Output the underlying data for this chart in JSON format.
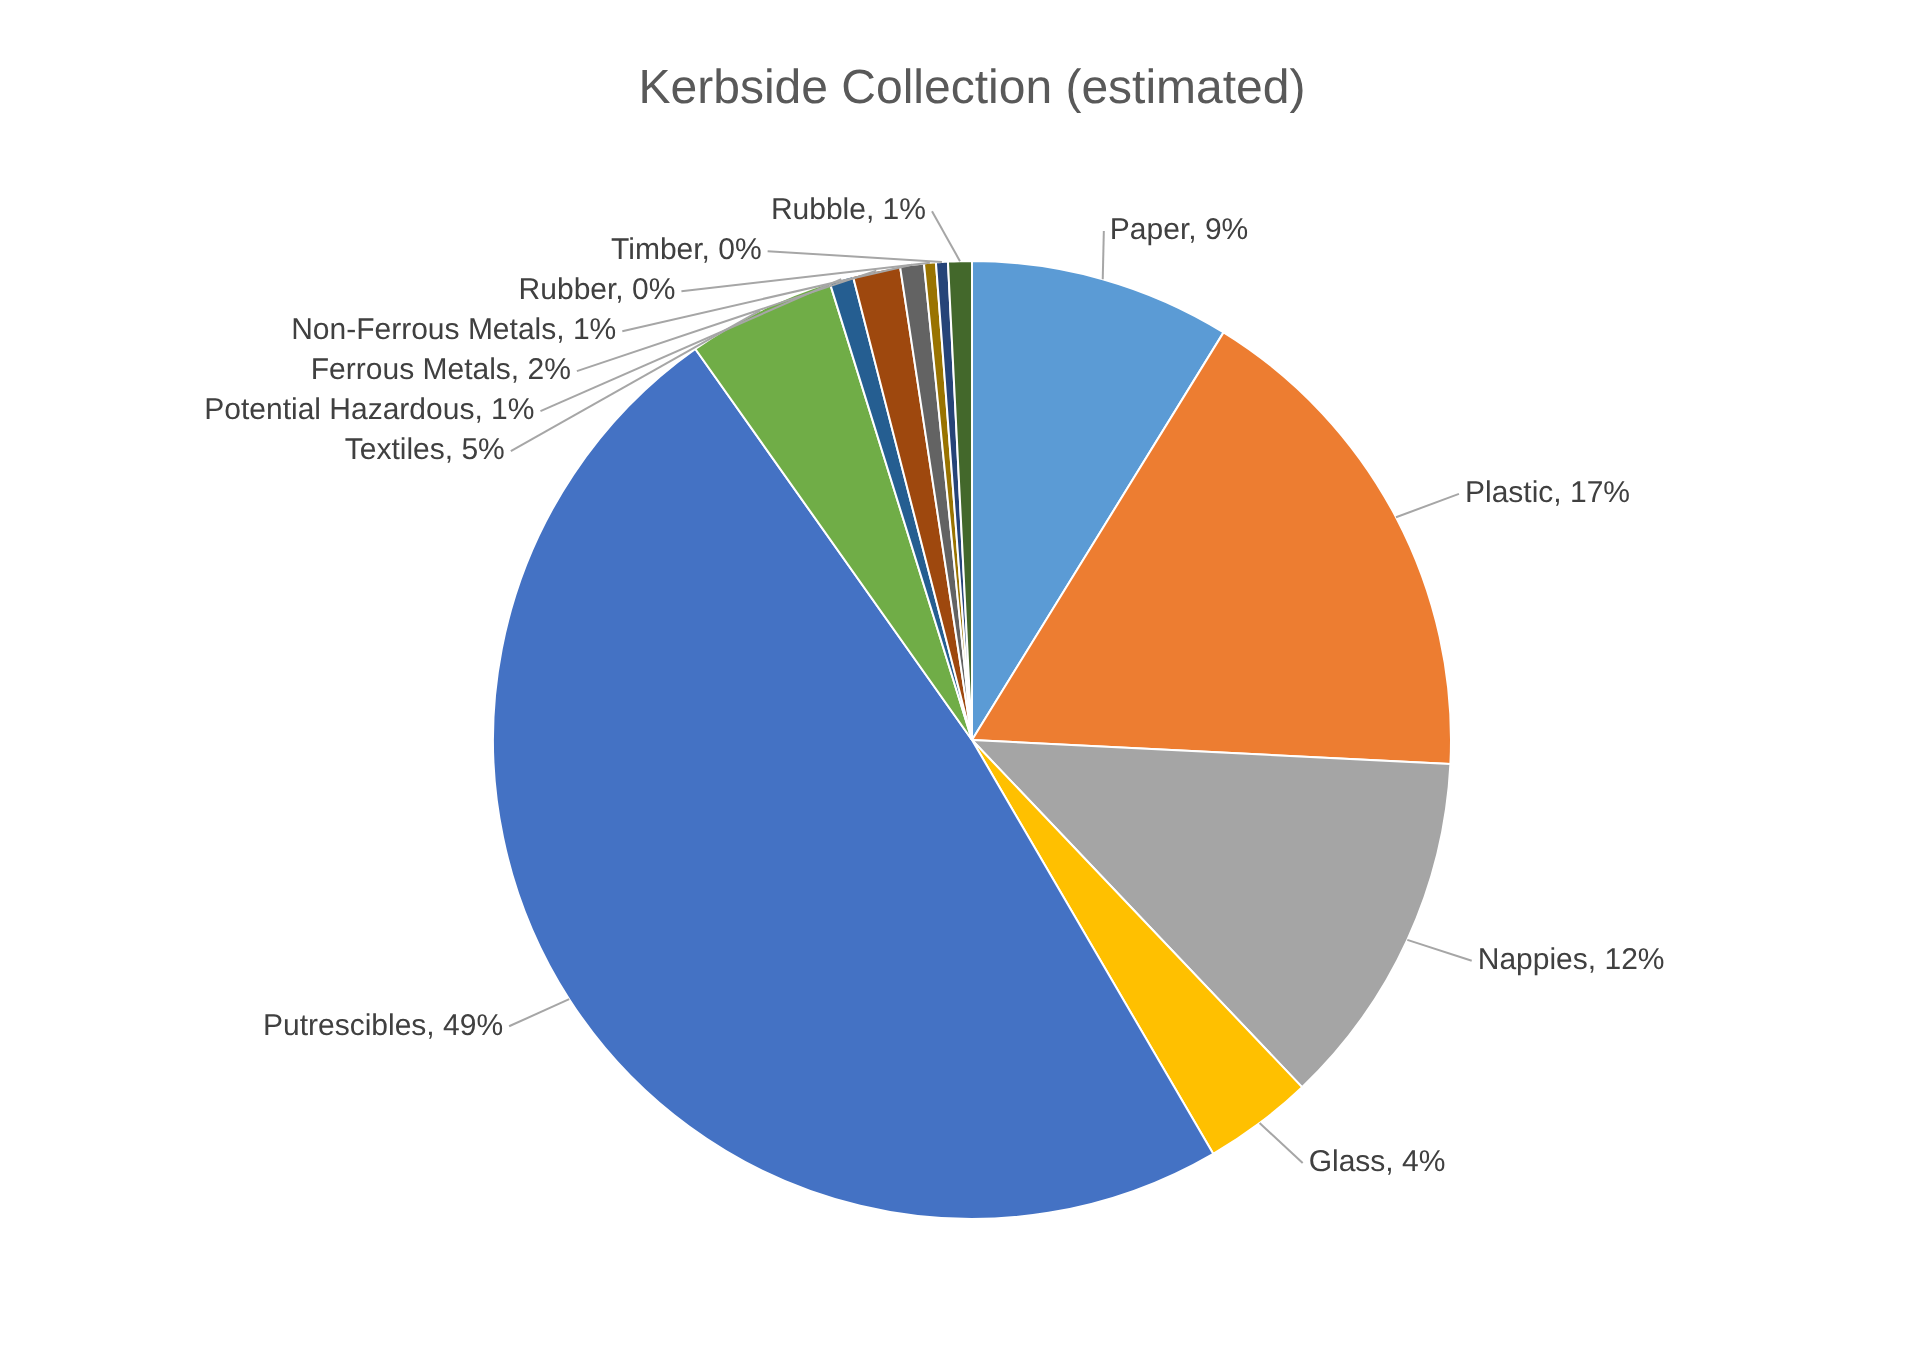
{
  "chart_data": {
    "type": "pie",
    "title": "Kerbside Collection (estimated)",
    "categories": [
      "Paper",
      "Plastic",
      "Nappies",
      "Glass",
      "Putrescibles",
      "Textiles",
      "Potential Hazardous",
      "Ferrous Metals",
      "Non-Ferrous Metals",
      "Rubber",
      "Timber",
      "Rubble"
    ],
    "values": [
      8.8,
      17.0,
      12.1,
      3.7,
      48.6,
      5.0,
      0.8,
      1.6,
      0.8,
      0.4,
      0.4,
      0.8
    ],
    "value_labels": [
      "9%",
      "17%",
      "12%",
      "4%",
      "49%",
      "5%",
      "1%",
      "2%",
      "1%",
      "0%",
      "0%",
      "1%"
    ],
    "colors": [
      "#5b9bd5",
      "#ed7d31",
      "#a5a5a5",
      "#ffc000",
      "#4472c4",
      "#70ad47",
      "#255e91",
      "#9e480e",
      "#636363",
      "#997300",
      "#264478",
      "#43682b"
    ],
    "legend": false
  }
}
